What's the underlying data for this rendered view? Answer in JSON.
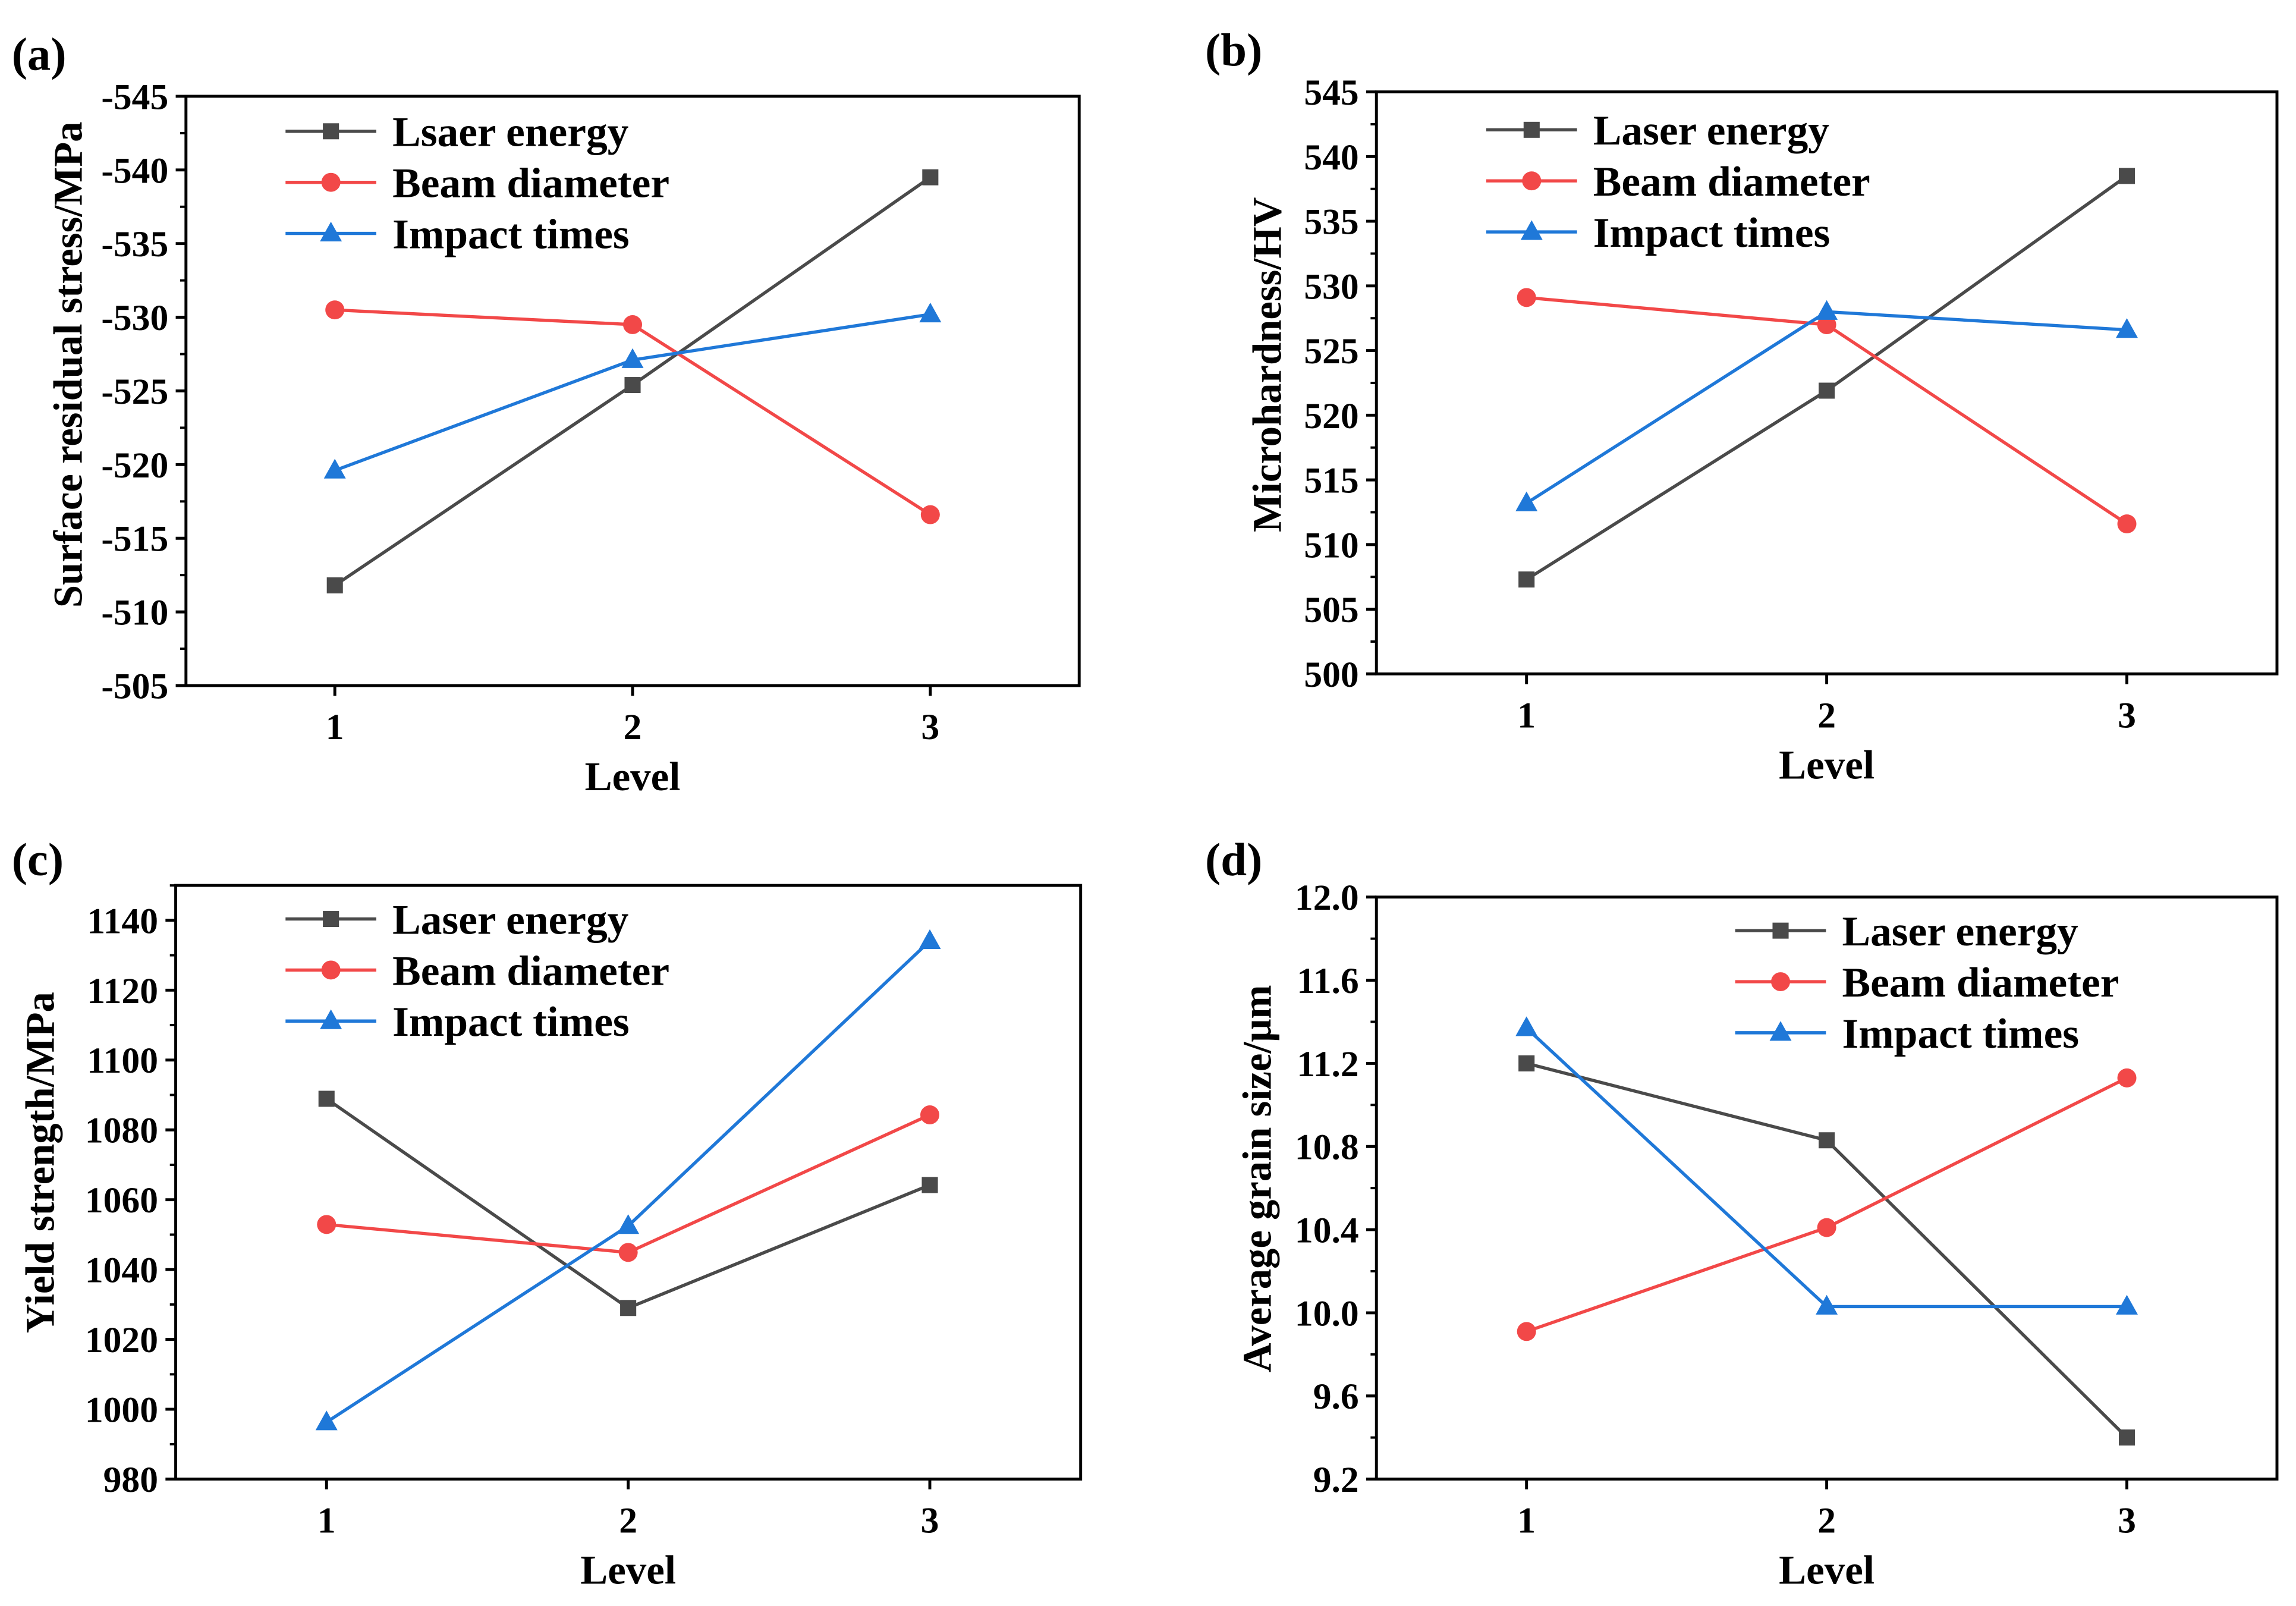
{
  "chart_data": [
    {
      "panel_label": "(a)",
      "type": "line",
      "xlabel": "Level",
      "ylabel": "Surface residual stress/MPa",
      "categories": [
        "1",
        "2",
        "3"
      ],
      "xlim": [
        0.5,
        3.5
      ],
      "ylim": [
        -545,
        -505
      ],
      "y_reversed": true,
      "yticks": [
        "-545",
        "-540",
        "-535",
        "-530",
        "-525",
        "-520",
        "-515",
        "-510",
        "-505"
      ],
      "grid": false,
      "legend": "top-left",
      "series": [
        {
          "name": "Lsaer energy",
          "values": [
            -511.8,
            -525.4,
            -539.5
          ],
          "color": "#4a4a4a",
          "marker": "square"
        },
        {
          "name": "Beam diameter",
          "values": [
            -530.5,
            -529.5,
            -516.6
          ],
          "color": "#f24848",
          "marker": "circle"
        },
        {
          "name": "Impact times",
          "values": [
            -519.6,
            -527.1,
            -530.2
          ],
          "color": "#1f78d8",
          "marker": "triangle"
        }
      ]
    },
    {
      "panel_label": "(b)",
      "type": "line",
      "xlabel": "Level",
      "ylabel": "Microhardness/HV",
      "categories": [
        "1",
        "2",
        "3"
      ],
      "xlim": [
        0.5,
        3.5
      ],
      "ylim": [
        500,
        545
      ],
      "y_reversed": false,
      "yticks": [
        "500",
        "505",
        "510",
        "515",
        "520",
        "525",
        "530",
        "535",
        "540",
        "545"
      ],
      "grid": false,
      "legend": "top-left",
      "series": [
        {
          "name": "Laser energy",
          "values": [
            507.3,
            521.9,
            538.5
          ],
          "color": "#4a4a4a",
          "marker": "square"
        },
        {
          "name": "Beam diameter",
          "values": [
            529.1,
            527.0,
            511.6
          ],
          "color": "#f24848",
          "marker": "circle"
        },
        {
          "name": "Impact times",
          "values": [
            513.2,
            528.0,
            526.6
          ],
          "color": "#1f78d8",
          "marker": "triangle"
        }
      ]
    },
    {
      "panel_label": "(c)",
      "type": "line",
      "xlabel": "Level",
      "ylabel": "Yield strength/MPa",
      "categories": [
        "1",
        "2",
        "3"
      ],
      "xlim": [
        0.5,
        3.5
      ],
      "ylim": [
        980,
        1150
      ],
      "y_reversed": false,
      "yticks": [
        "980",
        "1000",
        "1020",
        "1040",
        "1060",
        "1080",
        "1100",
        "1120",
        "1140"
      ],
      "grid": false,
      "legend": "top-left",
      "series": [
        {
          "name": "Laser energy",
          "values": [
            1088.9,
            1029.0,
            1064.2
          ],
          "color": "#4a4a4a",
          "marker": "square"
        },
        {
          "name": "Beam diameter",
          "values": [
            1052.9,
            1044.9,
            1084.3
          ],
          "color": "#f24848",
          "marker": "circle"
        },
        {
          "name": "Impact times",
          "values": [
            996.3,
            1052.5,
            1134.1
          ],
          "color": "#1f78d8",
          "marker": "triangle"
        }
      ]
    },
    {
      "panel_label": "(d)",
      "type": "line",
      "xlabel": "Level",
      "ylabel": "Average grain size/μm",
      "categories": [
        "1",
        "2",
        "3"
      ],
      "xlim": [
        0.5,
        3.5
      ],
      "ylim": [
        9.2,
        12.0
      ],
      "y_reversed": false,
      "yticks": [
        "9.2",
        "9.6",
        "10.0",
        "10.4",
        "10.8",
        "11.2",
        "11.6",
        "12.0"
      ],
      "grid": false,
      "legend": "top-right",
      "series": [
        {
          "name": "Laser energy",
          "values": [
            11.2,
            10.83,
            9.4
          ],
          "color": "#4a4a4a",
          "marker": "square"
        },
        {
          "name": "Beam diameter",
          "values": [
            9.91,
            10.41,
            11.13
          ],
          "color": "#f24848",
          "marker": "circle"
        },
        {
          "name": "Impact times",
          "values": [
            11.37,
            10.03,
            10.03
          ],
          "color": "#1f78d8",
          "marker": "triangle"
        }
      ]
    }
  ]
}
